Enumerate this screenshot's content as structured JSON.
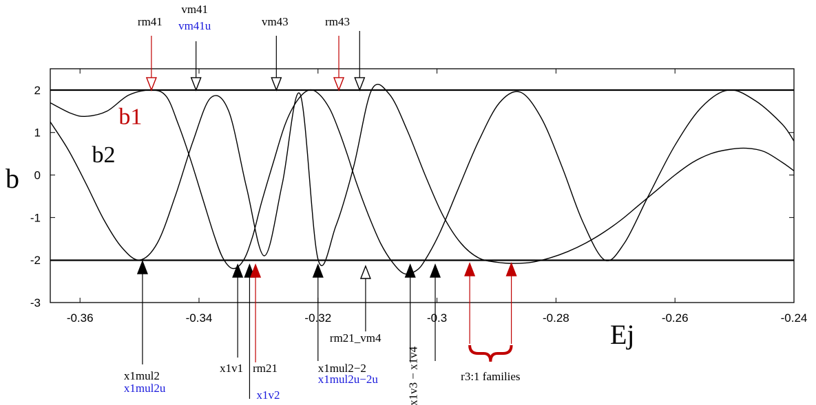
{
  "chart_data": {
    "type": "line",
    "title": "",
    "xlabel": "Ej",
    "ylabel": "b",
    "xlim": [
      -0.365,
      -0.24
    ],
    "ylim": [
      -3,
      2.5
    ],
    "xticks": [
      -0.36,
      -0.34,
      -0.32,
      -0.3,
      -0.28,
      -0.26,
      -0.24
    ],
    "xtick_labels": [
      "-0.36",
      "-0.34",
      "-0.32",
      "-0.3",
      "-0.28",
      "-0.26",
      "-0.24"
    ],
    "yticks": [
      -3,
      -2,
      -1,
      0,
      1,
      2
    ],
    "ytick_labels": [
      "-3",
      "-2",
      "-1",
      "0",
      "1",
      "2"
    ],
    "reference_lines": [
      2,
      -2
    ],
    "grid": false,
    "series": [
      {
        "name": "b1",
        "color": "#c00000",
        "x": [
          -0.365,
          -0.3615,
          -0.359,
          -0.3555,
          -0.3518,
          -0.348,
          -0.3455,
          -0.3435,
          -0.3415,
          -0.3395,
          -0.3375,
          -0.336,
          -0.3343,
          -0.3325,
          -0.331,
          -0.3295,
          -0.3275,
          -0.3255,
          -0.3235,
          -0.3215,
          -0.3198,
          -0.318,
          -0.3165,
          -0.315,
          -0.3135,
          -0.3115,
          -0.3095,
          -0.3075,
          -0.3055,
          -0.3035,
          -0.302,
          -0.2995,
          -0.2965,
          -0.293,
          -0.2895,
          -0.286,
          -0.2825,
          -0.279,
          -0.2755,
          -0.2718,
          -0.2685,
          -0.2645,
          -0.26,
          -0.2555,
          -0.251,
          -0.2465,
          -0.242,
          -0.24
        ],
        "y": [
          1.7,
          1.45,
          1.38,
          1.5,
          1.88,
          2.0,
          1.85,
          1.2,
          0.4,
          -0.5,
          -1.4,
          -1.95,
          -2.2,
          -2.0,
          -1.45,
          -0.65,
          0.3,
          1.2,
          1.75,
          2.0,
          1.9,
          1.55,
          1.05,
          0.45,
          -0.2,
          -0.95,
          -1.6,
          -2.05,
          -2.32,
          -2.25,
          -2.0,
          -1.35,
          -0.35,
          0.8,
          1.7,
          1.95,
          1.35,
          0.2,
          -1.1,
          -2.0,
          -1.6,
          -0.5,
          0.7,
          1.6,
          2.0,
          1.75,
          1.2,
          0.8
        ]
      },
      {
        "name": "b2",
        "color": "#000000",
        "x": [
          -0.365,
          -0.362,
          -0.359,
          -0.356,
          -0.353,
          -0.35,
          -0.347,
          -0.344,
          -0.341,
          -0.338,
          -0.335,
          -0.332,
          -0.329,
          -0.326,
          -0.323,
          -0.32,
          -0.317,
          -0.314,
          -0.311,
          -0.308,
          -0.305,
          -0.302,
          -0.299,
          -0.296,
          -0.293,
          -0.29,
          -0.287,
          -0.284,
          -0.281,
          -0.278,
          -0.275,
          -0.272,
          -0.269,
          -0.266,
          -0.263,
          -0.26,
          -0.257,
          -0.254,
          -0.251,
          -0.248,
          -0.245,
          -0.242,
          -0.24
        ],
        "y": [
          1.25,
          0.6,
          -0.2,
          -1.05,
          -1.7,
          -2.0,
          -1.6,
          -0.5,
          0.8,
          1.82,
          1.5,
          -0.3,
          -1.9,
          -0.2,
          1.9,
          -1.98,
          -1.2,
          0.2,
          2.0,
          1.9,
          1.05,
          0.0,
          -0.95,
          -1.6,
          -1.95,
          -2.05,
          -2.08,
          -2.05,
          -1.95,
          -1.8,
          -1.6,
          -1.35,
          -1.05,
          -0.7,
          -0.35,
          0.0,
          0.3,
          0.5,
          0.6,
          0.63,
          0.55,
          0.3,
          0.1
        ]
      }
    ],
    "curve_labels": [
      {
        "text": "b1",
        "color": "#c00000",
        "x": -0.3535,
        "y": 1.2
      },
      {
        "text": "b2",
        "color": "#000000",
        "x": -0.358,
        "y": 0.3
      }
    ],
    "annotations_top": [
      {
        "lines": [
          "rm41"
        ],
        "colors": [
          "#000000"
        ],
        "x": -0.348,
        "head_color": "#c00000",
        "head_fill": "none"
      },
      {
        "lines": [
          "vm41",
          "vm41u"
        ],
        "colors": [
          "#000000",
          "#1a1adc"
        ],
        "x": -0.3405,
        "head_color": "#000000",
        "head_fill": "none"
      },
      {
        "lines": [
          "vm43"
        ],
        "colors": [
          "#000000"
        ],
        "x": -0.327,
        "head_color": "#000000",
        "head_fill": "none"
      },
      {
        "lines": [
          "rm43"
        ],
        "colors": [
          "#000000"
        ],
        "x": -0.3165,
        "head_color": "#c00000",
        "head_fill": "none"
      },
      {
        "lines": [],
        "colors": [],
        "x": -0.313,
        "head_color": "#000000",
        "head_fill": "none"
      }
    ],
    "annotations_bottom": [
      {
        "lines": [
          "x1mul2",
          "x1mul2u"
        ],
        "colors": [
          "#000000",
          "#1a1adc"
        ],
        "x": -0.3495,
        "head_color": "#000000",
        "head_fill": "solid"
      },
      {
        "lines": [
          "x1v1"
        ],
        "colors": [
          "#000000"
        ],
        "x": -0.3335,
        "head_color": "#000000",
        "head_fill": "solid"
      },
      {
        "lines": [
          "x1v2"
        ],
        "colors": [
          "#1a1adc"
        ],
        "x": -0.3315,
        "head_color": "#000000",
        "head_fill": "solid"
      },
      {
        "lines": [
          "rm21"
        ],
        "colors": [
          "#000000"
        ],
        "x": -0.3305,
        "head_color": "#c00000",
        "head_fill": "solid"
      },
      {
        "lines": [
          "x1mul2−2",
          "x1mul2u−2u"
        ],
        "colors": [
          "#000000",
          "#1a1adc"
        ],
        "x": -0.32,
        "head_color": "#000000",
        "head_fill": "solid"
      },
      {
        "lines": [
          "rm21_vm4"
        ],
        "colors": [
          "#000000"
        ],
        "x": -0.312,
        "head_color": "#000000",
        "head_fill": "none"
      },
      {
        "lines": [
          "x1v3 − x1v4"
        ],
        "colors": [
          "#000000"
        ],
        "x": -0.3045,
        "head_color": "#000000",
        "head_fill": "solid"
      },
      {
        "lines": [],
        "colors": [],
        "x": -0.3003,
        "head_color": "#000000",
        "head_fill": "solid"
      },
      {
        "lines": [],
        "colors": [],
        "x": -0.2945,
        "head_color": "#c00000",
        "head_fill": "solid"
      },
      {
        "lines": [],
        "colors": [],
        "x": -0.2875,
        "head_color": "#c00000",
        "head_fill": "solid"
      }
    ],
    "bracket_label": {
      "text": "r3:1 families",
      "color": "#000000",
      "from_x": -0.2945,
      "to_x": -0.2875
    }
  }
}
